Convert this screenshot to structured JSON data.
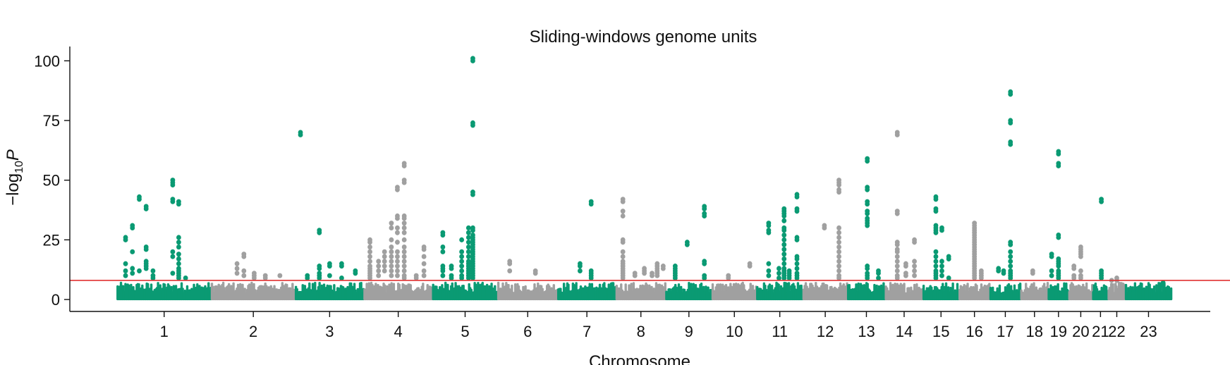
{
  "chart_data": {
    "type": "scatter",
    "title": "Sliding-windows genome units",
    "xlabel": "Chromosome",
    "ylabel": "−log",
    "ylabel_sub": "10",
    "ylabel_suffix": "P",
    "ylim": [
      -5,
      106
    ],
    "yticks": [
      0,
      25,
      50,
      75,
      100
    ],
    "threshold": 8,
    "colors": {
      "green": "#0a9a73",
      "grey": "#a0a0a0",
      "threshold": "#e03030"
    },
    "chromosomes": [
      {
        "label": "1",
        "start": 0,
        "end": 110,
        "color": "green"
      },
      {
        "label": "2",
        "start": 110,
        "end": 208,
        "color": "grey"
      },
      {
        "label": "3",
        "start": 208,
        "end": 288,
        "color": "green"
      },
      {
        "label": "4",
        "start": 288,
        "end": 368,
        "color": "grey"
      },
      {
        "label": "5",
        "start": 368,
        "end": 444,
        "color": "green"
      },
      {
        "label": "6",
        "start": 444,
        "end": 514,
        "color": "grey"
      },
      {
        "label": "7",
        "start": 514,
        "end": 582,
        "color": "green"
      },
      {
        "label": "8",
        "start": 582,
        "end": 640,
        "color": "grey"
      },
      {
        "label": "9",
        "start": 640,
        "end": 694,
        "color": "green"
      },
      {
        "label": "10",
        "start": 694,
        "end": 746,
        "color": "grey"
      },
      {
        "label": "11",
        "start": 746,
        "end": 800,
        "color": "green"
      },
      {
        "label": "12",
        "start": 800,
        "end": 852,
        "color": "grey"
      },
      {
        "label": "13",
        "start": 852,
        "end": 896,
        "color": "green"
      },
      {
        "label": "14",
        "start": 896,
        "end": 940,
        "color": "grey"
      },
      {
        "label": "15",
        "start": 940,
        "end": 982,
        "color": "green"
      },
      {
        "label": "16",
        "start": 982,
        "end": 1018,
        "color": "grey"
      },
      {
        "label": "17",
        "start": 1018,
        "end": 1054,
        "color": "green"
      },
      {
        "label": "18",
        "start": 1054,
        "end": 1086,
        "color": "grey"
      },
      {
        "label": "19",
        "start": 1086,
        "end": 1110,
        "color": "green"
      },
      {
        "label": "20",
        "start": 1110,
        "end": 1138,
        "color": "grey"
      },
      {
        "label": "21",
        "start": 1138,
        "end": 1156,
        "color": "green"
      },
      {
        "label": "22",
        "start": 1156,
        "end": 1176,
        "color": "grey"
      },
      {
        "label": "23",
        "start": 1176,
        "end": 1230,
        "color": "green"
      }
    ],
    "xlim": [
      -55,
      1275
    ],
    "peaks": [
      {
        "x": 10,
        "ys": [
          26,
          25,
          15,
          12,
          10
        ]
      },
      {
        "x": 18,
        "ys": [
          31,
          30,
          20,
          13,
          11
        ]
      },
      {
        "x": 26,
        "ys": [
          43,
          42,
          12
        ]
      },
      {
        "x": 34,
        "ys": [
          39,
          38,
          22,
          21,
          16,
          15,
          14,
          13
        ]
      },
      {
        "x": 42,
        "ys": [
          12,
          10,
          9
        ]
      },
      {
        "x": 65,
        "ys": [
          50,
          49,
          48,
          42,
          41,
          20,
          18,
          11
        ]
      },
      {
        "x": 72,
        "ys": [
          41,
          40,
          26,
          24,
          22,
          19,
          17,
          15,
          13,
          12,
          11,
          10,
          9
        ]
      },
      {
        "x": 80,
        "ys": [
          9
        ]
      },
      {
        "x": 140,
        "ys": [
          15,
          13,
          11
        ]
      },
      {
        "x": 148,
        "ys": [
          19,
          18,
          12,
          10
        ]
      },
      {
        "x": 160,
        "ys": [
          11,
          10,
          9
        ]
      },
      {
        "x": 173,
        "ys": [
          10,
          9
        ]
      },
      {
        "x": 190,
        "ys": [
          10
        ]
      },
      {
        "x": 214,
        "ys": [
          70,
          69
        ]
      },
      {
        "x": 222,
        "ys": [
          10,
          9
        ]
      },
      {
        "x": 236,
        "ys": [
          29,
          28,
          14,
          13,
          11,
          10,
          9
        ]
      },
      {
        "x": 248,
        "ys": [
          15,
          14,
          10
        ]
      },
      {
        "x": 262,
        "ys": [
          15,
          14,
          9
        ]
      },
      {
        "x": 278,
        "ys": [
          12,
          11
        ]
      },
      {
        "x": 295,
        "ys": [
          25,
          24,
          22,
          20,
          18,
          16,
          14,
          13,
          12,
          11,
          10,
          9
        ]
      },
      {
        "x": 305,
        "ys": [
          16,
          14,
          12,
          10
        ]
      },
      {
        "x": 312,
        "ys": [
          20,
          18,
          16,
          14,
          12
        ]
      },
      {
        "x": 320,
        "ys": [
          32,
          30,
          25,
          22,
          20,
          18,
          16,
          14,
          12,
          10
        ]
      },
      {
        "x": 327,
        "ys": [
          47,
          46,
          35,
          34,
          30,
          28,
          24,
          20,
          18,
          16,
          14,
          12,
          10
        ]
      },
      {
        "x": 335,
        "ys": [
          57,
          56,
          50,
          49,
          35,
          34,
          32,
          30,
          28,
          25,
          22,
          20,
          18,
          16,
          14,
          12,
          10,
          9
        ]
      },
      {
        "x": 349,
        "ys": [
          10,
          9
        ]
      },
      {
        "x": 358,
        "ys": [
          22,
          21,
          18,
          15,
          12,
          10
        ]
      },
      {
        "x": 380,
        "ys": [
          28,
          27,
          22,
          20,
          14,
          13,
          12,
          10
        ]
      },
      {
        "x": 390,
        "ys": [
          14,
          13,
          10,
          9
        ]
      },
      {
        "x": 402,
        "ys": [
          25,
          20,
          18,
          16,
          14,
          12,
          10,
          9
        ]
      },
      {
        "x": 410,
        "ys": [
          30,
          28,
          26,
          24,
          22,
          20,
          18,
          16,
          15,
          14,
          13,
          12,
          11,
          10,
          9
        ]
      },
      {
        "x": 415,
        "ys": [
          101,
          100,
          74,
          73,
          45,
          44,
          30,
          29,
          27,
          26,
          25,
          24,
          23,
          22,
          21,
          20,
          19,
          18,
          17,
          16,
          15,
          14,
          13,
          12,
          11,
          10,
          9
        ]
      },
      {
        "x": 458,
        "ys": [
          16,
          15,
          12
        ]
      },
      {
        "x": 488,
        "ys": [
          12,
          11
        ]
      },
      {
        "x": 540,
        "ys": [
          15,
          14,
          12
        ]
      },
      {
        "x": 553,
        "ys": [
          41,
          40,
          12,
          11,
          10,
          9
        ]
      },
      {
        "x": 590,
        "ys": [
          42,
          41,
          37,
          35,
          25,
          24,
          20,
          18,
          16,
          15,
          14,
          13,
          12,
          11,
          10,
          9
        ]
      },
      {
        "x": 604,
        "ys": [
          11,
          10
        ]
      },
      {
        "x": 615,
        "ys": [
          13,
          12,
          11
        ]
      },
      {
        "x": 624,
        "ys": [
          11,
          10
        ]
      },
      {
        "x": 630,
        "ys": [
          15,
          14,
          13,
          12,
          11,
          10
        ]
      },
      {
        "x": 637,
        "ys": [
          14,
          13
        ]
      },
      {
        "x": 651,
        "ys": [
          14,
          13,
          12,
          11,
          10,
          9
        ]
      },
      {
        "x": 665,
        "ys": [
          24,
          23
        ]
      },
      {
        "x": 685,
        "ys": [
          39,
          38,
          36,
          35,
          16,
          15,
          10,
          9
        ]
      },
      {
        "x": 713,
        "ys": [
          10,
          9
        ]
      },
      {
        "x": 738,
        "ys": [
          15,
          14
        ]
      },
      {
        "x": 760,
        "ys": [
          32,
          31,
          29,
          28,
          15,
          12,
          10
        ]
      },
      {
        "x": 778,
        "ys": [
          38,
          37,
          36,
          35,
          33,
          30,
          29,
          27,
          25,
          23,
          21,
          19,
          17,
          15,
          13,
          12,
          11,
          10,
          9
        ]
      },
      {
        "x": 772,
        "ys": [
          13,
          11,
          9
        ]
      },
      {
        "x": 784,
        "ys": [
          12,
          11,
          10,
          9
        ]
      },
      {
        "x": 793,
        "ys": [
          44,
          43,
          38,
          37,
          26,
          25,
          18,
          17,
          15,
          13,
          11,
          10,
          9
        ]
      },
      {
        "x": 825,
        "ys": [
          31,
          30
        ]
      },
      {
        "x": 842,
        "ys": [
          50,
          49,
          48,
          46,
          45,
          30,
          28,
          26,
          24,
          22,
          20,
          18,
          16,
          14,
          12,
          10,
          9
        ]
      },
      {
        "x": 875,
        "ys": [
          59,
          58,
          47,
          46,
          41,
          40,
          37,
          36,
          34,
          33,
          32,
          31,
          14,
          13,
          11,
          10,
          9
        ]
      },
      {
        "x": 888,
        "ys": [
          12,
          11,
          9
        ]
      },
      {
        "x": 910,
        "ys": [
          70,
          69,
          37,
          36,
          24,
          23,
          21,
          20,
          18,
          16,
          14,
          12,
          10,
          9
        ]
      },
      {
        "x": 920,
        "ys": [
          15,
          14,
          11,
          10
        ]
      },
      {
        "x": 930,
        "ys": [
          25,
          24,
          16,
          14,
          12,
          10
        ]
      },
      {
        "x": 955,
        "ys": [
          43,
          42,
          38,
          37,
          31,
          30,
          29,
          28,
          20,
          18,
          16,
          14,
          12,
          11,
          10,
          9
        ]
      },
      {
        "x": 962,
        "ys": [
          30,
          29,
          16,
          14,
          12,
          10
        ]
      },
      {
        "x": 970,
        "ys": [
          18,
          17,
          9
        ]
      },
      {
        "x": 1000,
        "ys": [
          32,
          31,
          30,
          29,
          28,
          27,
          26,
          25,
          24,
          23,
          22,
          21,
          20,
          19,
          18,
          17,
          16,
          15,
          14,
          13,
          12,
          11,
          10,
          9
        ]
      },
      {
        "x": 1008,
        "ys": [
          12,
          11,
          10,
          9
        ]
      },
      {
        "x": 1028,
        "ys": [
          13,
          12
        ]
      },
      {
        "x": 1034,
        "ys": [
          12,
          11
        ]
      },
      {
        "x": 1042,
        "ys": [
          87,
          86,
          75,
          74,
          66,
          65,
          24,
          23,
          20,
          18,
          16,
          14,
          12,
          11,
          10,
          9
        ]
      },
      {
        "x": 1068,
        "ys": [
          12,
          11
        ]
      },
      {
        "x": 1090,
        "ys": [
          19,
          18,
          12,
          10
        ]
      },
      {
        "x": 1098,
        "ys": [
          62,
          61,
          57,
          56,
          27,
          26,
          17,
          16,
          15,
          14,
          12,
          11,
          10,
          9
        ]
      },
      {
        "x": 1116,
        "ys": [
          14,
          13,
          10,
          9
        ]
      },
      {
        "x": 1124,
        "ys": [
          22,
          21,
          20,
          19,
          18,
          12,
          10,
          9
        ]
      },
      {
        "x": 1148,
        "ys": [
          42,
          41,
          12,
          11,
          10,
          9
        ]
      },
      {
        "x": 1160,
        "ys": [
          8
        ]
      },
      {
        "x": 1166,
        "ys": [
          9,
          8
        ]
      },
      {
        "x": 1220,
        "ys": [
          7,
          6
        ]
      }
    ]
  }
}
